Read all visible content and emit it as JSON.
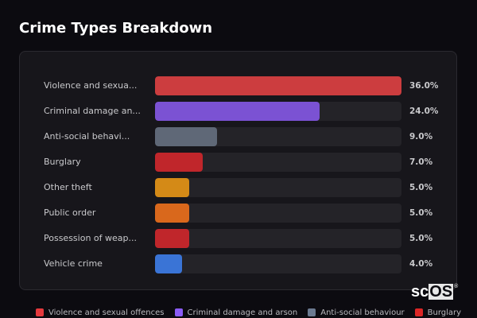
{
  "header": {
    "title": "Crime Types Breakdown"
  },
  "chart_data": {
    "type": "bar",
    "orientation": "horizontal",
    "title": "Crime Types Breakdown",
    "xlabel": "",
    "ylabel": "",
    "value_format": "percent",
    "categories": [
      "Violence and sexual offences",
      "Criminal damage and arson",
      "Anti-social behaviour",
      "Burglary",
      "Other theft",
      "Public order",
      "Possession of weapons",
      "Vehicle crime"
    ],
    "display_labels": [
      "Violence and sexua...",
      "Criminal damage an...",
      "Anti-social behavi...",
      "Burglary",
      "Other theft",
      "Public order",
      "Possession of weap...",
      "Vehicle crime"
    ],
    "values": [
      36.0,
      24.0,
      9.0,
      7.0,
      5.0,
      5.0,
      5.0,
      4.0
    ],
    "value_labels": [
      "36.0%",
      "24.0%",
      "9.0%",
      "7.0%",
      "5.0%",
      "5.0%",
      "5.0%",
      "4.0%"
    ],
    "colors": [
      "#cc3d3f",
      "#7b52d3",
      "#5f6877",
      "#c0262b",
      "#d48a17",
      "#d9681c",
      "#c0262b",
      "#3a74d6"
    ],
    "xlim": [
      0,
      36
    ],
    "grid": false,
    "legend_position": "bottom",
    "legend": [
      {
        "label": "Violence and sexual offences",
        "color": "#e5393d"
      },
      {
        "label": "Criminal damage and arson",
        "color": "#8b5cf6"
      },
      {
        "label": "Anti-social behaviour",
        "color": "#6b7a90"
      },
      {
        "label": "Burglary",
        "color": "#dc2626"
      }
    ]
  },
  "watermark": {
    "sc": "sc",
    "os": "OS",
    "reg": "®"
  }
}
